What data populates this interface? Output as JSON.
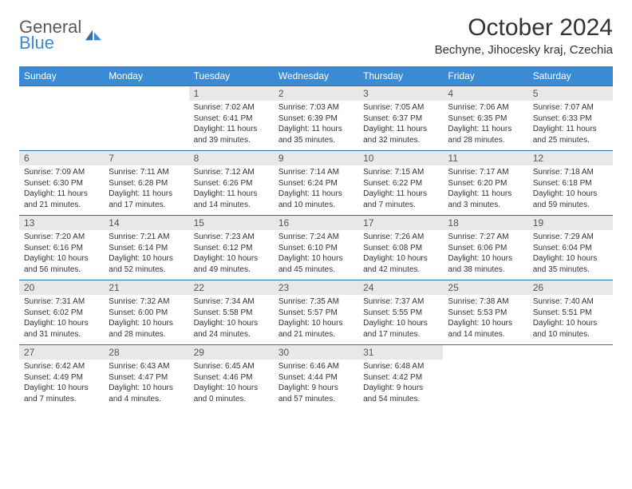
{
  "logo": {
    "line1": "General",
    "line2": "Blue"
  },
  "title": "October 2024",
  "location": "Bechyne, Jihocesky kraj, Czechia",
  "colors": {
    "header_bg": "#3b8bd4",
    "header_text": "#ffffff",
    "daynum_bg": "#e8e8e8",
    "row_border": "#2a6eab",
    "text": "#333333"
  },
  "day_headers": [
    "Sunday",
    "Monday",
    "Tuesday",
    "Wednesday",
    "Thursday",
    "Friday",
    "Saturday"
  ],
  "weeks": [
    [
      {
        "n": "",
        "sr": "",
        "ss": "",
        "dl": ""
      },
      {
        "n": "",
        "sr": "",
        "ss": "",
        "dl": ""
      },
      {
        "n": "1",
        "sr": "Sunrise: 7:02 AM",
        "ss": "Sunset: 6:41 PM",
        "dl": "Daylight: 11 hours and 39 minutes."
      },
      {
        "n": "2",
        "sr": "Sunrise: 7:03 AM",
        "ss": "Sunset: 6:39 PM",
        "dl": "Daylight: 11 hours and 35 minutes."
      },
      {
        "n": "3",
        "sr": "Sunrise: 7:05 AM",
        "ss": "Sunset: 6:37 PM",
        "dl": "Daylight: 11 hours and 32 minutes."
      },
      {
        "n": "4",
        "sr": "Sunrise: 7:06 AM",
        "ss": "Sunset: 6:35 PM",
        "dl": "Daylight: 11 hours and 28 minutes."
      },
      {
        "n": "5",
        "sr": "Sunrise: 7:07 AM",
        "ss": "Sunset: 6:33 PM",
        "dl": "Daylight: 11 hours and 25 minutes."
      }
    ],
    [
      {
        "n": "6",
        "sr": "Sunrise: 7:09 AM",
        "ss": "Sunset: 6:30 PM",
        "dl": "Daylight: 11 hours and 21 minutes."
      },
      {
        "n": "7",
        "sr": "Sunrise: 7:11 AM",
        "ss": "Sunset: 6:28 PM",
        "dl": "Daylight: 11 hours and 17 minutes."
      },
      {
        "n": "8",
        "sr": "Sunrise: 7:12 AM",
        "ss": "Sunset: 6:26 PM",
        "dl": "Daylight: 11 hours and 14 minutes."
      },
      {
        "n": "9",
        "sr": "Sunrise: 7:14 AM",
        "ss": "Sunset: 6:24 PM",
        "dl": "Daylight: 11 hours and 10 minutes."
      },
      {
        "n": "10",
        "sr": "Sunrise: 7:15 AM",
        "ss": "Sunset: 6:22 PM",
        "dl": "Daylight: 11 hours and 7 minutes."
      },
      {
        "n": "11",
        "sr": "Sunrise: 7:17 AM",
        "ss": "Sunset: 6:20 PM",
        "dl": "Daylight: 11 hours and 3 minutes."
      },
      {
        "n": "12",
        "sr": "Sunrise: 7:18 AM",
        "ss": "Sunset: 6:18 PM",
        "dl": "Daylight: 10 hours and 59 minutes."
      }
    ],
    [
      {
        "n": "13",
        "sr": "Sunrise: 7:20 AM",
        "ss": "Sunset: 6:16 PM",
        "dl": "Daylight: 10 hours and 56 minutes."
      },
      {
        "n": "14",
        "sr": "Sunrise: 7:21 AM",
        "ss": "Sunset: 6:14 PM",
        "dl": "Daylight: 10 hours and 52 minutes."
      },
      {
        "n": "15",
        "sr": "Sunrise: 7:23 AM",
        "ss": "Sunset: 6:12 PM",
        "dl": "Daylight: 10 hours and 49 minutes."
      },
      {
        "n": "16",
        "sr": "Sunrise: 7:24 AM",
        "ss": "Sunset: 6:10 PM",
        "dl": "Daylight: 10 hours and 45 minutes."
      },
      {
        "n": "17",
        "sr": "Sunrise: 7:26 AM",
        "ss": "Sunset: 6:08 PM",
        "dl": "Daylight: 10 hours and 42 minutes."
      },
      {
        "n": "18",
        "sr": "Sunrise: 7:27 AM",
        "ss": "Sunset: 6:06 PM",
        "dl": "Daylight: 10 hours and 38 minutes."
      },
      {
        "n": "19",
        "sr": "Sunrise: 7:29 AM",
        "ss": "Sunset: 6:04 PM",
        "dl": "Daylight: 10 hours and 35 minutes."
      }
    ],
    [
      {
        "n": "20",
        "sr": "Sunrise: 7:31 AM",
        "ss": "Sunset: 6:02 PM",
        "dl": "Daylight: 10 hours and 31 minutes."
      },
      {
        "n": "21",
        "sr": "Sunrise: 7:32 AM",
        "ss": "Sunset: 6:00 PM",
        "dl": "Daylight: 10 hours and 28 minutes."
      },
      {
        "n": "22",
        "sr": "Sunrise: 7:34 AM",
        "ss": "Sunset: 5:58 PM",
        "dl": "Daylight: 10 hours and 24 minutes."
      },
      {
        "n": "23",
        "sr": "Sunrise: 7:35 AM",
        "ss": "Sunset: 5:57 PM",
        "dl": "Daylight: 10 hours and 21 minutes."
      },
      {
        "n": "24",
        "sr": "Sunrise: 7:37 AM",
        "ss": "Sunset: 5:55 PM",
        "dl": "Daylight: 10 hours and 17 minutes."
      },
      {
        "n": "25",
        "sr": "Sunrise: 7:38 AM",
        "ss": "Sunset: 5:53 PM",
        "dl": "Daylight: 10 hours and 14 minutes."
      },
      {
        "n": "26",
        "sr": "Sunrise: 7:40 AM",
        "ss": "Sunset: 5:51 PM",
        "dl": "Daylight: 10 hours and 10 minutes."
      }
    ],
    [
      {
        "n": "27",
        "sr": "Sunrise: 6:42 AM",
        "ss": "Sunset: 4:49 PM",
        "dl": "Daylight: 10 hours and 7 minutes."
      },
      {
        "n": "28",
        "sr": "Sunrise: 6:43 AM",
        "ss": "Sunset: 4:47 PM",
        "dl": "Daylight: 10 hours and 4 minutes."
      },
      {
        "n": "29",
        "sr": "Sunrise: 6:45 AM",
        "ss": "Sunset: 4:46 PM",
        "dl": "Daylight: 10 hours and 0 minutes."
      },
      {
        "n": "30",
        "sr": "Sunrise: 6:46 AM",
        "ss": "Sunset: 4:44 PM",
        "dl": "Daylight: 9 hours and 57 minutes."
      },
      {
        "n": "31",
        "sr": "Sunrise: 6:48 AM",
        "ss": "Sunset: 4:42 PM",
        "dl": "Daylight: 9 hours and 54 minutes."
      },
      {
        "n": "",
        "sr": "",
        "ss": "",
        "dl": ""
      },
      {
        "n": "",
        "sr": "",
        "ss": "",
        "dl": ""
      }
    ]
  ]
}
